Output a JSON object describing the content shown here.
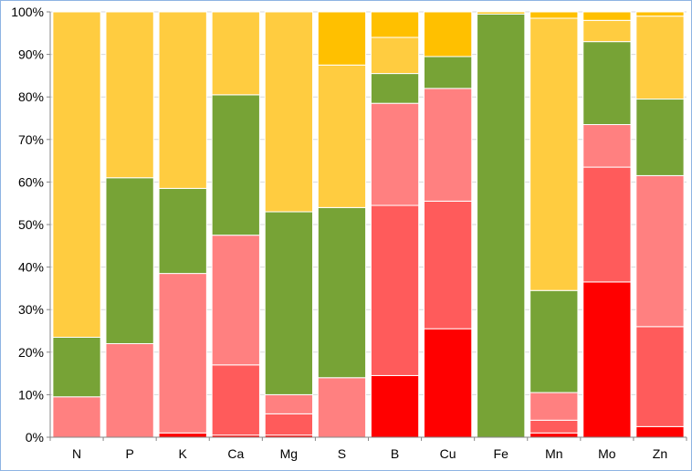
{
  "chart_data": {
    "type": "bar",
    "stacked": true,
    "percent": true,
    "title": "",
    "xlabel": "",
    "ylabel": "",
    "ylim": [
      0,
      100
    ],
    "yticks": [
      "0%",
      "10%",
      "20%",
      "30%",
      "40%",
      "50%",
      "60%",
      "70%",
      "80%",
      "90%",
      "100%"
    ],
    "grid": true,
    "legend": "none",
    "categories": [
      "N",
      "P",
      "K",
      "Ca",
      "Mg",
      "S",
      "B",
      "Cu",
      "Fe",
      "Mn",
      "Mo",
      "Zn"
    ],
    "series": [
      {
        "color": "#ff0000",
        "values": [
          0,
          0,
          1,
          0.5,
          0.5,
          0,
          14.5,
          25.5,
          0,
          1,
          36.5,
          2.5
        ]
      },
      {
        "color": "#ff5b5b",
        "values": [
          0,
          0,
          0,
          16.5,
          5,
          0,
          40,
          30,
          0,
          3,
          27,
          23.5
        ]
      },
      {
        "color": "#ff8080",
        "values": [
          9.5,
          22,
          37.5,
          30.5,
          4.5,
          14,
          24,
          26.5,
          0,
          6.5,
          10,
          35.5
        ]
      },
      {
        "color": "#77a336",
        "values": [
          14,
          39,
          20,
          33,
          43,
          40,
          7,
          7.5,
          99.5,
          24,
          19.5,
          18
        ]
      },
      {
        "color": "#ffcc40",
        "values": [
          76.5,
          39,
          41.5,
          19.5,
          47,
          33.5,
          8.5,
          0,
          0,
          64,
          5,
          19.5
        ]
      },
      {
        "color": "#ffc000",
        "values": [
          0,
          0,
          0,
          0,
          0,
          12.5,
          6,
          10.5,
          0.5,
          1.5,
          2,
          1
        ]
      }
    ]
  },
  "colors": {
    "gridline": "#d9d9d9",
    "axis": "#868686",
    "border": "#8eb4e3",
    "separator": "#ffffff"
  }
}
